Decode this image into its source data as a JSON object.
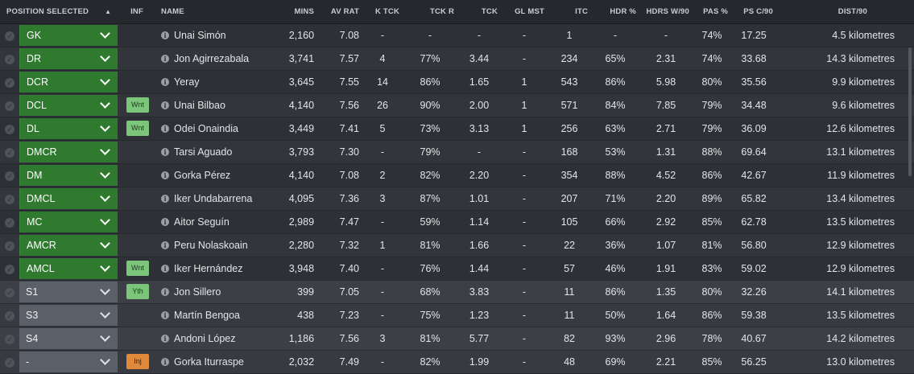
{
  "columns": {
    "position": "POSITION SELECTED",
    "inf": "INF",
    "name": "NAME",
    "mins": "MINS",
    "av_rat": "AV RAT",
    "k_tck": "K TCK",
    "tck_r": "TCK R",
    "tck": "TCK",
    "gl_mst": "GL MST",
    "itc": "ITC",
    "hdr_pct": "HDR %",
    "hdrs_w90": "HDRS W/90",
    "pas_pct": "PAS %",
    "ps_c90": "PS C/90",
    "dist90": "DIST/90"
  },
  "sort_icon": "sort-up-arrow-icon",
  "rows": [
    {
      "pos": "GK",
      "group": "first",
      "inf": "",
      "name": "Unai Simón",
      "mins": "2,160",
      "av_rat": "7.08",
      "k_tck": "-",
      "tck_r": "-",
      "tck": "-",
      "gl_mst": "-",
      "itc": "1",
      "hdr_pct": "-",
      "hdrs_w90": "-",
      "pas_pct": "74%",
      "ps_c90": "17.25",
      "dist90": "4.5 kilometres"
    },
    {
      "pos": "DR",
      "group": "first",
      "inf": "",
      "name": "Jon Agirrezabala",
      "mins": "3,741",
      "av_rat": "7.57",
      "k_tck": "4",
      "tck_r": "77%",
      "tck": "3.44",
      "gl_mst": "-",
      "itc": "234",
      "hdr_pct": "65%",
      "hdrs_w90": "2.31",
      "pas_pct": "74%",
      "ps_c90": "33.68",
      "dist90": "14.3 kilometres"
    },
    {
      "pos": "DCR",
      "group": "first",
      "inf": "",
      "name": "Yeray",
      "mins": "3,645",
      "av_rat": "7.55",
      "k_tck": "14",
      "tck_r": "86%",
      "tck": "1.65",
      "gl_mst": "1",
      "itc": "543",
      "hdr_pct": "86%",
      "hdrs_w90": "5.98",
      "pas_pct": "80%",
      "ps_c90": "35.56",
      "dist90": "9.9 kilometres"
    },
    {
      "pos": "DCL",
      "group": "first",
      "inf": "Wnt",
      "inf_color": "green",
      "name": "Unai Bilbao",
      "mins": "4,140",
      "av_rat": "7.56",
      "k_tck": "26",
      "tck_r": "90%",
      "tck": "2.00",
      "gl_mst": "1",
      "itc": "571",
      "hdr_pct": "84%",
      "hdrs_w90": "7.85",
      "pas_pct": "79%",
      "ps_c90": "34.48",
      "dist90": "9.6 kilometres"
    },
    {
      "pos": "DL",
      "group": "first",
      "inf": "Wnt",
      "inf_color": "green",
      "name": "Odei Onaindia",
      "mins": "3,449",
      "av_rat": "7.41",
      "k_tck": "5",
      "tck_r": "73%",
      "tck": "3.13",
      "gl_mst": "1",
      "itc": "256",
      "hdr_pct": "63%",
      "hdrs_w90": "2.71",
      "pas_pct": "79%",
      "ps_c90": "36.09",
      "dist90": "12.6 kilometres"
    },
    {
      "pos": "DMCR",
      "group": "first",
      "inf": "",
      "name": "Tarsi Aguado",
      "mins": "3,793",
      "av_rat": "7.30",
      "k_tck": "-",
      "tck_r": "79%",
      "tck": "-",
      "gl_mst": "-",
      "itc": "168",
      "hdr_pct": "53%",
      "hdrs_w90": "1.31",
      "pas_pct": "88%",
      "ps_c90": "69.64",
      "dist90": "13.1 kilometres"
    },
    {
      "pos": "DM",
      "group": "first",
      "inf": "",
      "name": "Gorka Pérez",
      "mins": "4,140",
      "av_rat": "7.08",
      "k_tck": "2",
      "tck_r": "82%",
      "tck": "2.20",
      "gl_mst": "-",
      "itc": "354",
      "hdr_pct": "88%",
      "hdrs_w90": "4.52",
      "pas_pct": "86%",
      "ps_c90": "42.67",
      "dist90": "11.9 kilometres"
    },
    {
      "pos": "DMCL",
      "group": "first",
      "inf": "",
      "name": "Iker Undabarrena",
      "mins": "4,095",
      "av_rat": "7.36",
      "k_tck": "3",
      "tck_r": "87%",
      "tck": "1.01",
      "gl_mst": "-",
      "itc": "207",
      "hdr_pct": "71%",
      "hdrs_w90": "2.20",
      "pas_pct": "89%",
      "ps_c90": "65.82",
      "dist90": "13.4 kilometres"
    },
    {
      "pos": "MC",
      "group": "first",
      "inf": "",
      "name": "Aitor Seguín",
      "mins": "2,989",
      "av_rat": "7.47",
      "k_tck": "-",
      "tck_r": "59%",
      "tck": "1.14",
      "gl_mst": "-",
      "itc": "105",
      "hdr_pct": "66%",
      "hdrs_w90": "2.92",
      "pas_pct": "85%",
      "ps_c90": "62.78",
      "dist90": "13.5 kilometres"
    },
    {
      "pos": "AMCR",
      "group": "first",
      "inf": "",
      "name": "Peru Nolaskoain",
      "mins": "2,280",
      "av_rat": "7.32",
      "k_tck": "1",
      "tck_r": "81%",
      "tck": "1.66",
      "gl_mst": "-",
      "itc": "22",
      "hdr_pct": "36%",
      "hdrs_w90": "1.07",
      "pas_pct": "81%",
      "ps_c90": "56.80",
      "dist90": "12.9 kilometres"
    },
    {
      "pos": "AMCL",
      "group": "first",
      "inf": "Wnt",
      "inf_color": "green",
      "name": "Iker Hernández",
      "mins": "3,948",
      "av_rat": "7.40",
      "k_tck": "-",
      "tck_r": "76%",
      "tck": "1.44",
      "gl_mst": "-",
      "itc": "57",
      "hdr_pct": "46%",
      "hdrs_w90": "1.91",
      "pas_pct": "83%",
      "ps_c90": "59.02",
      "dist90": "12.9 kilometres"
    },
    {
      "pos": "S1",
      "group": "sub",
      "inf": "Yth",
      "inf_color": "green",
      "name": "Jon Sillero",
      "mins": "399",
      "av_rat": "7.05",
      "k_tck": "-",
      "tck_r": "68%",
      "tck": "3.83",
      "gl_mst": "-",
      "itc": "11",
      "hdr_pct": "86%",
      "hdrs_w90": "1.35",
      "pas_pct": "80%",
      "ps_c90": "32.26",
      "dist90": "14.1 kilometres"
    },
    {
      "pos": "S3",
      "group": "sub",
      "inf": "",
      "name": "Martín Bengoa",
      "mins": "438",
      "av_rat": "7.23",
      "k_tck": "-",
      "tck_r": "75%",
      "tck": "1.23",
      "gl_mst": "-",
      "itc": "11",
      "hdr_pct": "50%",
      "hdrs_w90": "1.64",
      "pas_pct": "86%",
      "ps_c90": "59.38",
      "dist90": "13.5 kilometres"
    },
    {
      "pos": "S4",
      "group": "sub",
      "inf": "",
      "name": "Andoni López",
      "mins": "1,186",
      "av_rat": "7.56",
      "k_tck": "3",
      "tck_r": "81%",
      "tck": "5.77",
      "gl_mst": "-",
      "itc": "82",
      "hdr_pct": "93%",
      "hdrs_w90": "2.96",
      "pas_pct": "78%",
      "ps_c90": "40.67",
      "dist90": "14.2 kilometres"
    },
    {
      "pos": "-",
      "group": "sub",
      "inf": "Inj",
      "inf_color": "orange",
      "name": "Gorka Iturraspe",
      "mins": "2,032",
      "av_rat": "7.49",
      "k_tck": "-",
      "tck_r": "82%",
      "tck": "1.99",
      "gl_mst": "-",
      "itc": "48",
      "hdr_pct": "69%",
      "hdrs_w90": "2.21",
      "pas_pct": "85%",
      "ps_c90": "56.25",
      "dist90": "13.0 kilometres"
    }
  ]
}
